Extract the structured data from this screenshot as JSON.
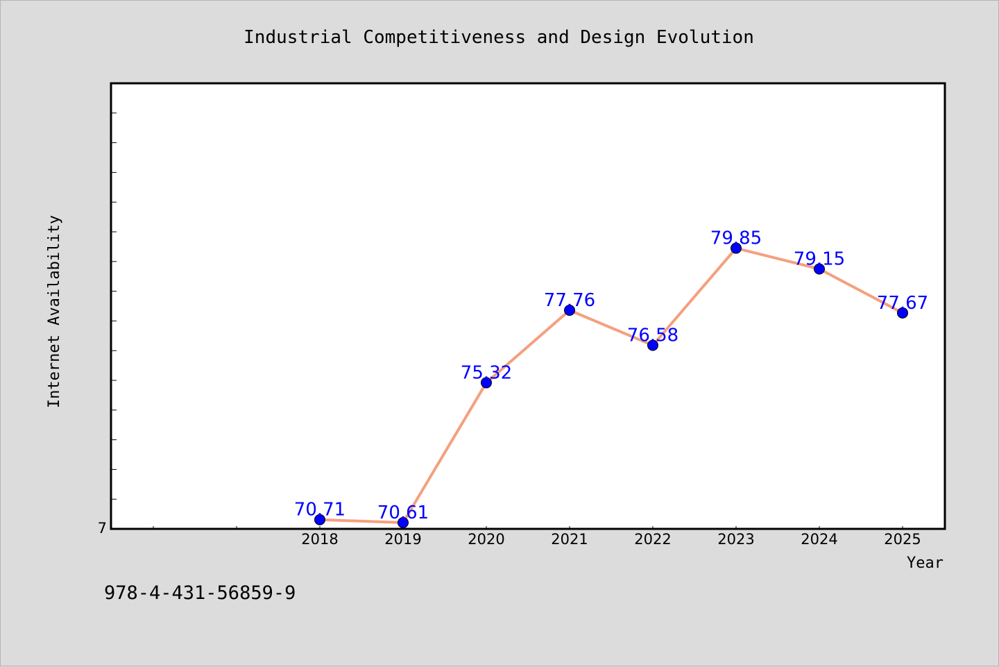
{
  "chart_data": {
    "type": "line",
    "title": "Industrial Competitiveness and Design Evolution",
    "xlabel": "Year",
    "ylabel": "Internet Availability",
    "categories": [
      "2018",
      "2019",
      "2020",
      "2021",
      "2022",
      "2023",
      "2024",
      "2025"
    ],
    "series": [
      {
        "values": [
          70.71,
          70.61,
          75.32,
          77.76,
          76.58,
          79.85,
          79.15,
          77.67
        ],
        "line_color": "#f4a07e",
        "marker_color": "#0000ff"
      }
    ],
    "ylim": [
      70.4,
      85.4
    ],
    "y_tick_labels": [
      "7"
    ],
    "grid": false,
    "data_label_color": "#0000ff"
  },
  "footer": {
    "code": "978-4-431-56859-9"
  }
}
